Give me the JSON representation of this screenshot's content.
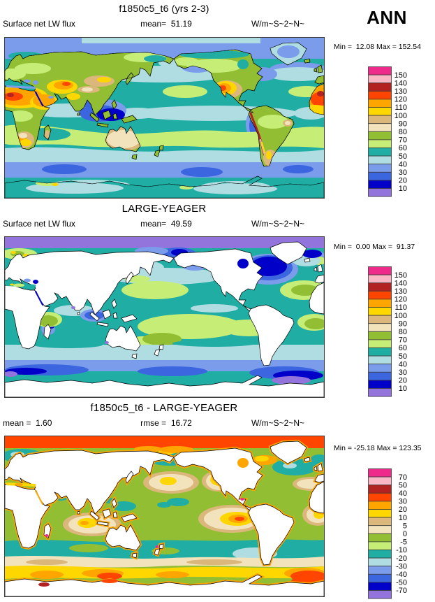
{
  "header": {
    "season_label": "ANN"
  },
  "panels": [
    {
      "title": "f1850c5_t6 (yrs 2-3)",
      "left_label": "Surface net LW flux",
      "center_label": "mean=  51.19",
      "right_label": "W/m~S~2~N~",
      "minmax": "Min =  12.08 Max = 152.54",
      "colorbar_labels": [
        "150",
        "140",
        "130",
        "120",
        "110",
        "100",
        "90",
        "80",
        "70",
        "60",
        "50",
        "40",
        "30",
        "20",
        "10"
      ]
    },
    {
      "title": "LARGE-YEAGER",
      "left_label": "Surface net LW flux",
      "center_label": "mean=  49.59",
      "right_label": "W/m~S~2~N~",
      "minmax": "Min =  0.00 Max =  91.37",
      "colorbar_labels": [
        "150",
        "140",
        "130",
        "120",
        "110",
        "100",
        "90",
        "80",
        "70",
        "60",
        "50",
        "40",
        "30",
        "20",
        "10"
      ]
    },
    {
      "title": "f1850c5_t6 - LARGE-YEAGER",
      "left_label": "mean =  1.60",
      "center_label": "rmse =  16.72",
      "right_label": "W/m~S~2~N~",
      "minmax": "Min = -25.18 Max = 123.35",
      "colorbar_labels": [
        "70",
        "50",
        "40",
        "30",
        "20",
        "10",
        "5",
        "0",
        "-5",
        "-10",
        "-20",
        "-30",
        "-40",
        "-50",
        "-70"
      ]
    }
  ],
  "chart_data": [
    {
      "type": "heatmap",
      "title": "f1850c5_t6 (yrs 2-3)",
      "variable": "Surface net LW flux",
      "units": "W/m~S~2~N~",
      "season": "ANN",
      "stats": {
        "mean": 51.19,
        "min": 12.08,
        "max": 152.54
      },
      "levels": [
        10,
        20,
        30,
        40,
        50,
        60,
        70,
        80,
        90,
        100,
        110,
        120,
        130,
        140,
        150
      ],
      "palette_hex": [
        "#EE2A8B",
        "#F9B7C6",
        "#B22222",
        "#FF4500",
        "#FFA500",
        "#FFD700",
        "#DBB77B",
        "#F2E3BD",
        "#92BE33",
        "#C6EE77",
        "#1FADA4",
        "#AFDDE2",
        "#7A9CEB",
        "#3C66DF",
        "#0000C8",
        "#9374DC"
      ],
      "legend_position": "right",
      "notes": "global lat-lon contour map, land and ocean filled"
    },
    {
      "type": "heatmap",
      "title": "LARGE-YEAGER",
      "variable": "Surface net LW flux",
      "units": "W/m~S~2~N~",
      "season": "ANN",
      "stats": {
        "mean": 49.59,
        "min": 0.0,
        "max": 91.37
      },
      "levels": [
        10,
        20,
        30,
        40,
        50,
        60,
        70,
        80,
        90,
        100,
        110,
        120,
        130,
        140,
        150
      ],
      "palette_hex": [
        "#EE2A8B",
        "#F9B7C6",
        "#B22222",
        "#FF4500",
        "#FFA500",
        "#FFD700",
        "#DBB77B",
        "#F2E3BD",
        "#92BE33",
        "#C6EE77",
        "#1FADA4",
        "#AFDDE2",
        "#7A9CEB",
        "#3C66DF",
        "#0000C8",
        "#9374DC"
      ],
      "legend_position": "right",
      "notes": "global lat-lon contour map, ocean only, continents blank"
    },
    {
      "type": "heatmap",
      "title": "f1850c5_t6 - LARGE-YEAGER",
      "variable": "Surface net LW flux difference",
      "units": "W/m~S~2~N~",
      "season": "ANN",
      "stats": {
        "mean": 1.6,
        "rmse": 16.72,
        "min": -25.18,
        "max": 123.35
      },
      "levels": [
        -70,
        -50,
        -40,
        -30,
        -20,
        -10,
        -5,
        0,
        5,
        10,
        20,
        30,
        40,
        50,
        70
      ],
      "palette_hex": [
        "#EE2A8B",
        "#F9B7C6",
        "#B22222",
        "#FF4500",
        "#FFA500",
        "#FFD700",
        "#DBB77B",
        "#F2E3BD",
        "#92BE33",
        "#C6EE77",
        "#1FADA4",
        "#AFDDE2",
        "#7A9CEB",
        "#3C66DF",
        "#0000C8",
        "#9374DC"
      ],
      "legend_position": "right",
      "notes": "difference map, ocean only, continents blank"
    }
  ]
}
